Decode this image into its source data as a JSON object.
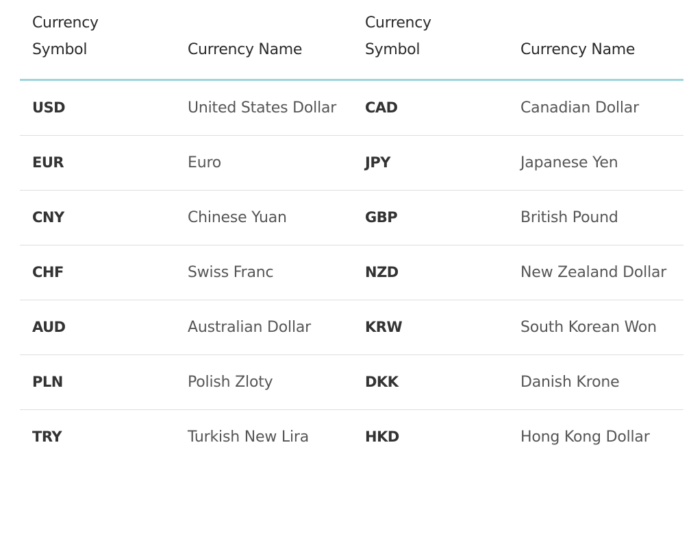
{
  "table": {
    "headers": [
      "Currency\nSymbol",
      "Currency Name",
      "Currency\nSymbol",
      "Currency Name"
    ],
    "rows": [
      {
        "symbol1": "USD",
        "name1": "United States Dollar",
        "symbol2": "CAD",
        "name2": "Canadian Dollar"
      },
      {
        "symbol1": "EUR",
        "name1": "Euro",
        "symbol2": "JPY",
        "name2": "Japanese Yen"
      },
      {
        "symbol1": "CNY",
        "name1": "Chinese Yuan",
        "symbol2": "GBP",
        "name2": "British Pound"
      },
      {
        "symbol1": "CHF",
        "name1": "Swiss Franc",
        "symbol2": "NZD",
        "name2": "New Zealand Dollar"
      },
      {
        "symbol1": "AUD",
        "name1": "Australian Dollar",
        "symbol2": "KRW",
        "name2": "South Korean Won"
      },
      {
        "symbol1": "PLN",
        "name1": "Polish Zloty",
        "symbol2": "DKK",
        "name2": "Danish Krone"
      },
      {
        "symbol1": "TRY",
        "name1": "Turkish New Lira",
        "symbol2": "HKD",
        "name2": "Hong Kong Dollar"
      }
    ]
  }
}
